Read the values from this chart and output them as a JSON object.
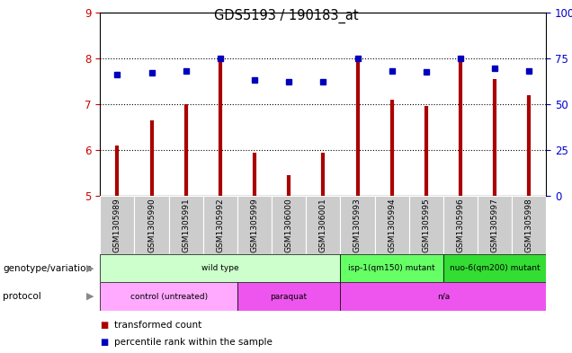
{
  "title": "GDS5193 / 190183_at",
  "samples": [
    "GSM1305989",
    "GSM1305990",
    "GSM1305991",
    "GSM1305992",
    "GSM1305999",
    "GSM1306000",
    "GSM1306001",
    "GSM1305993",
    "GSM1305994",
    "GSM1305995",
    "GSM1305996",
    "GSM1305997",
    "GSM1305998"
  ],
  "red_values": [
    6.1,
    6.65,
    7.0,
    7.95,
    5.95,
    5.45,
    5.95,
    8.0,
    7.1,
    6.95,
    8.0,
    7.55,
    7.2
  ],
  "blue_values": [
    7.65,
    7.68,
    7.72,
    8.0,
    7.52,
    7.48,
    7.48,
    8.0,
    7.72,
    7.7,
    8.0,
    7.78,
    7.72
  ],
  "ylim": [
    5,
    9
  ],
  "yticks": [
    5,
    6,
    7,
    8,
    9
  ],
  "genotype_groups": [
    {
      "label": "wild type",
      "start": 0,
      "end": 6,
      "color": "#ccffcc"
    },
    {
      "label": "isp-1(qm150) mutant",
      "start": 7,
      "end": 9,
      "color": "#66ff66"
    },
    {
      "label": "nuo-6(qm200) mutant",
      "start": 10,
      "end": 12,
      "color": "#33dd33"
    }
  ],
  "proto_defs": [
    {
      "label": "control (untreated)",
      "start": 0,
      "end": 3,
      "color": "#ffaaff"
    },
    {
      "label": "paraquat",
      "start": 4,
      "end": 6,
      "color": "#ee55ee"
    },
    {
      "label": "n/a",
      "start": 7,
      "end": 12,
      "color": "#ee55ee"
    }
  ],
  "bar_color": "#aa0000",
  "dot_color": "#0000bb",
  "tick_color_left": "#cc0000",
  "tick_color_right": "#0000cc",
  "grid_yticks": [
    6,
    7,
    8
  ],
  "right_tick_labels": [
    "0",
    "25",
    "50",
    "75",
    "100%"
  ]
}
